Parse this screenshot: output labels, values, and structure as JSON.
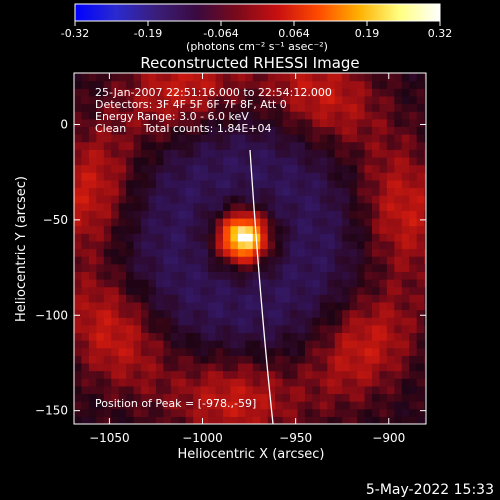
{
  "chart_data": {
    "type": "heatmap",
    "title": "Reconstructed RHESSI Image",
    "xlabel": "Heliocentric X (arcsec)",
    "ylabel": "Heliocentric Y (arcsec)",
    "xlim": [
      -1069,
      -880
    ],
    "ylim": [
      -157,
      27
    ],
    "xticks": [
      -1050,
      -1000,
      -950,
      -900
    ],
    "yticks": [
      0,
      -50,
      -100,
      -150
    ],
    "annotation_lines": [
      "25-Jan-2007 22:51:16.000 to 22:54:12.000",
      "Detectors: 3F 4F 5F 6F 7F 8F, Att 0",
      "Energy Range: 3.0 - 6.0 keV",
      "Clean     Total counts: 1.84E+04"
    ],
    "peak_label": "Position of Peak = [-978.,-59]",
    "peak": {
      "x": -978,
      "y": -59
    },
    "colorbar": {
      "min": -0.32,
      "max": 0.32,
      "ticks": [
        "-0.32",
        "-0.19",
        "-0.064",
        "0.064",
        "0.19",
        "0.32"
      ],
      "unit_label": "(photons cm⁻² s⁻¹ asec⁻²)",
      "colors": [
        "#0000ff",
        "#2a2ad0",
        "#3a1e7a",
        "#3a0a40",
        "#7a0a1a",
        "#c81010",
        "#ff4a00",
        "#ffb000",
        "#ffff80",
        "#ffffff"
      ]
    }
  },
  "footer": {
    "timestamp": "5-May-2022 15:33"
  }
}
